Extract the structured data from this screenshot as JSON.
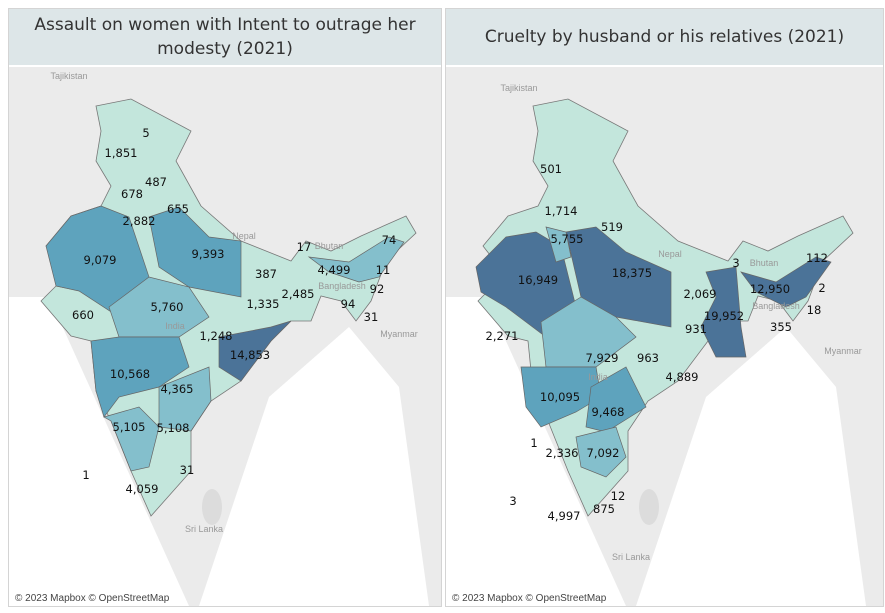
{
  "panels": [
    {
      "title": "Assault on women with Intent to outrage her modesty (2021)",
      "credit": "© 2023 Mapbox © OpenStreetMap",
      "values": [
        "5",
        "1,851",
        "487",
        "678",
        "655",
        "2,882",
        "9,079",
        "9,393",
        "387",
        "17",
        "4,499",
        "74",
        "11",
        "92",
        "94",
        "31",
        "1,335",
        "2,485",
        "5,760",
        "660",
        "1,248",
        "14,853",
        "10,568",
        "4,365",
        "5,105",
        "5,108",
        "31",
        "1",
        "4,059"
      ]
    },
    {
      "title": "Cruelty by husband or his relatives (2021)",
      "credit": "© 2023 Mapbox © OpenStreetMap",
      "values": [
        "501",
        "1,714",
        "519",
        "5,755",
        "16,949",
        "18,375",
        "3",
        "112",
        "12,950",
        "2",
        "18",
        "2,069",
        "19,952",
        "931",
        "355",
        "2,271",
        "7,929",
        "963",
        "4,889",
        "10,095",
        "9,468",
        "1",
        "2,336",
        "7,092",
        "12",
        "3",
        "4,997",
        "875"
      ]
    }
  ],
  "basemap_labels": [
    "Tajikistan",
    "Nepal",
    "Bhutan",
    "Bangladesh",
    "Myanmar",
    "Sri Lanka",
    "India"
  ],
  "colors": {
    "low": "#c3e6dc",
    "mid_low": "#a3d3d6",
    "mid": "#84bfcc",
    "mid_high": "#5ea3bd",
    "high": "#4b7398",
    "land": "#ebebeb",
    "sea": "#ffffff"
  }
}
